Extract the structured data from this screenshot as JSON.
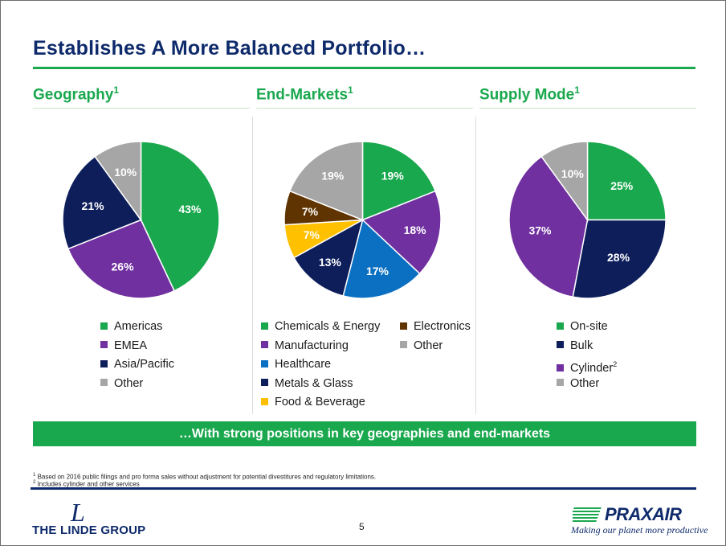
{
  "slide": {
    "title": "Establishes A More Balanced Portfolio…",
    "banner": "…With strong positions in key geographies and end-markets",
    "page_number": "5",
    "footnotes": [
      {
        "mark": "1",
        "text": "Based on 2016 public filings and pro forma sales without adjustment for potential divestitures and regulatory limitations."
      },
      {
        "mark": "2",
        "text": "Includes cylinder and other services"
      }
    ],
    "logo_left": {
      "text": "THE LINDE GROUP",
      "mark": "L"
    },
    "logo_right": {
      "name": "PRAXAIR",
      "tagline": "Making our planet more productive"
    }
  },
  "columns": [
    {
      "heading": "Geography",
      "sup": "1"
    },
    {
      "heading": "End-Markets",
      "sup": "1"
    },
    {
      "heading": "Supply Mode",
      "sup": "1"
    }
  ],
  "colors": {
    "green": "#19a84d",
    "purple": "#7030a0",
    "navy": "#0e1e5b",
    "grey": "#a6a6a6",
    "blue": "#0c70c2",
    "gold": "#ffc000",
    "brown": "#603400",
    "title_navy": "#0e2a6b"
  },
  "chart_data": [
    {
      "type": "pie",
      "title": "Geography",
      "categories": [
        "Americas",
        "EMEA",
        "Asia/Pacific",
        "Other"
      ],
      "values": [
        43,
        26,
        21,
        10
      ],
      "labels": [
        "43%",
        "26%",
        "21%",
        "10%"
      ],
      "colors": [
        "#19a84d",
        "#7030a0",
        "#0e1e5b",
        "#a6a6a6"
      ],
      "legend": [
        {
          "label": "Americas",
          "color": "#19a84d"
        },
        {
          "label": "EMEA",
          "color": "#7030a0"
        },
        {
          "label": "Asia/Pacific",
          "color": "#0e1e5b"
        },
        {
          "label": "Other",
          "color": "#a6a6a6"
        }
      ],
      "legend_position": "bottom"
    },
    {
      "type": "pie",
      "title": "End-Markets",
      "categories": [
        "Chemicals & Energy",
        "Manufacturing",
        "Healthcare",
        "Metals & Glass",
        "Food & Beverage",
        "Electronics",
        "Other"
      ],
      "values": [
        19,
        18,
        17,
        13,
        7,
        7,
        19
      ],
      "labels": [
        "19%",
        "18%",
        "17%",
        "13%",
        "7%",
        "7%",
        "19%"
      ],
      "colors": [
        "#19a84d",
        "#7030a0",
        "#0c70c2",
        "#0e1e5b",
        "#ffc000",
        "#603400",
        "#a6a6a6"
      ],
      "legend": [
        {
          "label": "Chemicals & Energy",
          "color": "#19a84d"
        },
        {
          "label": "Manufacturing",
          "color": "#7030a0"
        },
        {
          "label": "Healthcare",
          "color": "#0c70c2"
        },
        {
          "label": "Metals & Glass",
          "color": "#0e1e5b"
        },
        {
          "label": "Food & Beverage",
          "color": "#ffc000"
        },
        {
          "label": "Electronics",
          "color": "#603400"
        },
        {
          "label": "Other",
          "color": "#a6a6a6"
        }
      ],
      "legend_position": "bottom"
    },
    {
      "type": "pie",
      "title": "Supply Mode",
      "categories": [
        "On-site",
        "Bulk",
        "Cylinder",
        "Other"
      ],
      "values": [
        25,
        28,
        37,
        10
      ],
      "labels": [
        "25%",
        "28%",
        "37%",
        "10%"
      ],
      "colors": [
        "#19a84d",
        "#0e1e5b",
        "#7030a0",
        "#a6a6a6"
      ],
      "legend": [
        {
          "label": "On-site",
          "color": "#19a84d"
        },
        {
          "label": "Bulk",
          "color": "#0e1e5b"
        },
        {
          "label": "Cylinder",
          "color": "#7030a0",
          "sup": "2"
        },
        {
          "label": "Other",
          "color": "#a6a6a6"
        }
      ],
      "legend_position": "bottom"
    }
  ]
}
